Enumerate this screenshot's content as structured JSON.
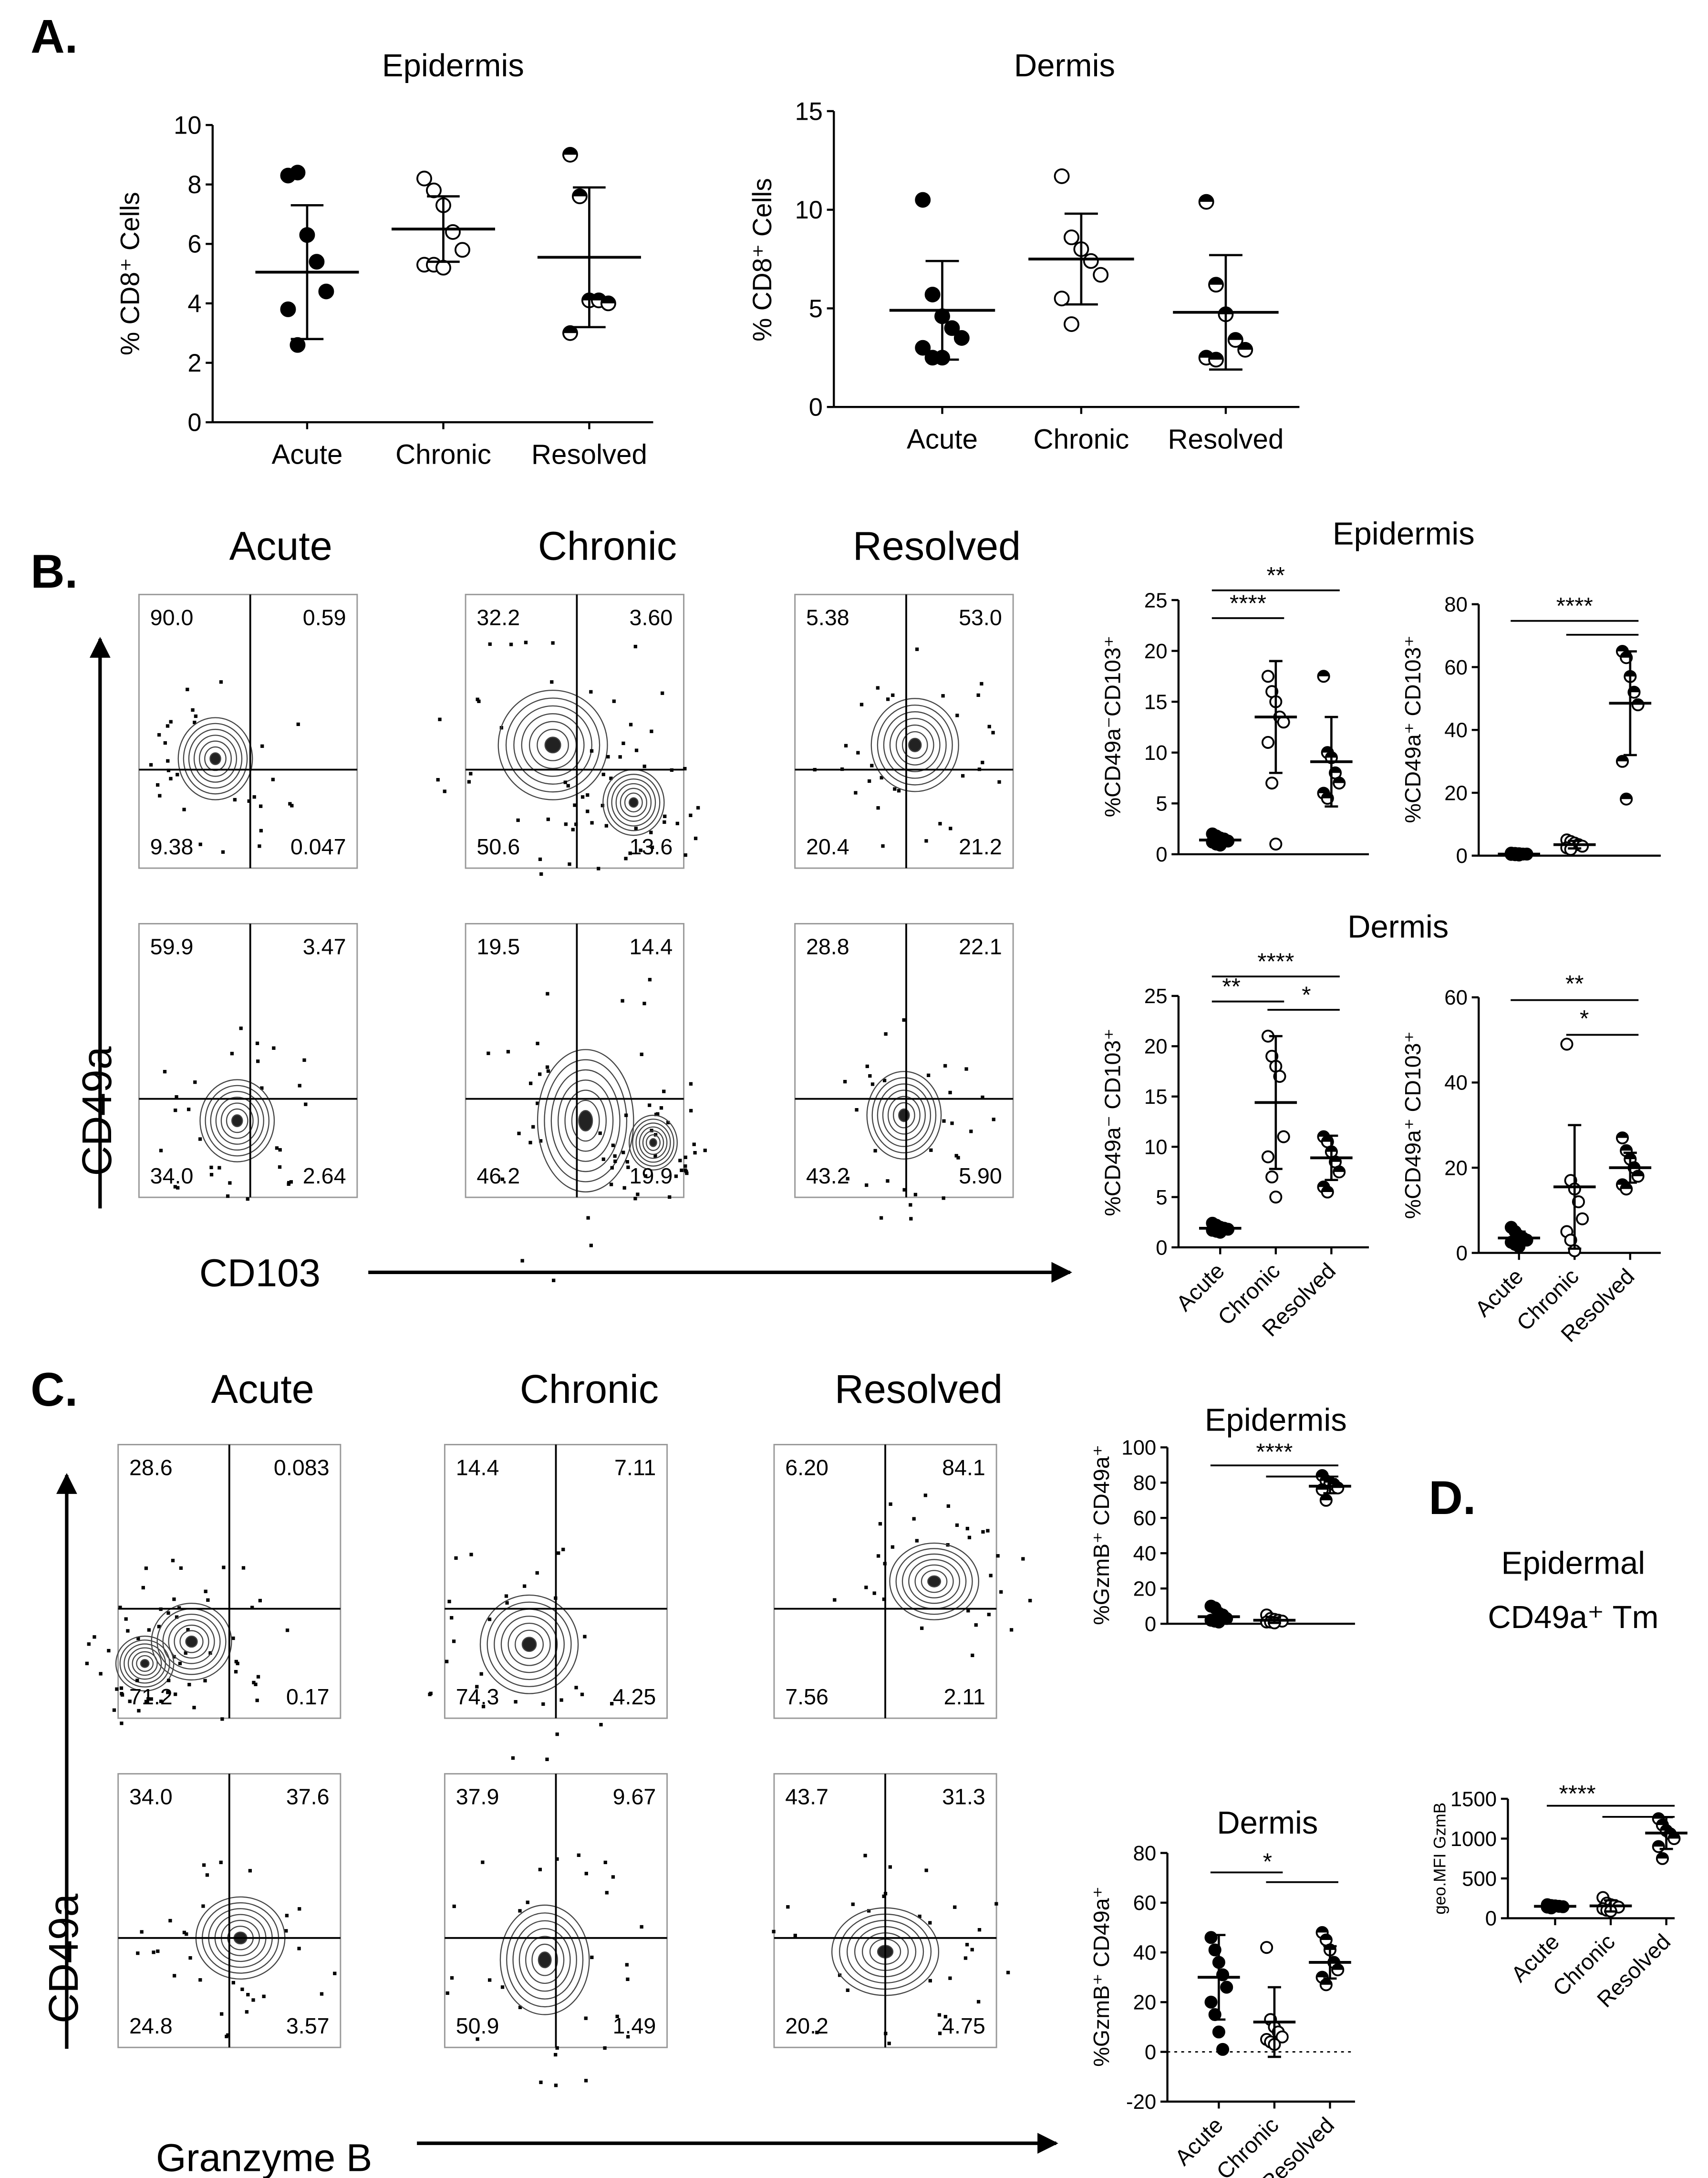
{
  "panel_labels": [
    "A.",
    "B.",
    "C.",
    "D."
  ],
  "flow": [
    {
      "groups": [
        "Acute",
        "Chronic",
        "Resolved"
      ],
      "axis_y": "CD49a",
      "axis_x": "CD103",
      "plots": [
        [
          [
            "90.0",
            "0.59",
            "9.38",
            "0.047"
          ],
          [
            "32.2",
            "3.60",
            "50.6",
            "13.6"
          ],
          [
            "5.38",
            "53.0",
            "20.4",
            "21.2"
          ]
        ],
        [
          [
            "59.9",
            "3.47",
            "34.0",
            "2.64"
          ],
          [
            "19.5",
            "14.4",
            "46.2",
            "19.9"
          ],
          [
            "28.8",
            "22.1",
            "43.2",
            "5.90"
          ]
        ]
      ]
    },
    {
      "groups": [
        "Acute",
        "Chronic",
        "Resolved"
      ],
      "axis_y": "CD49a",
      "axis_x": "Granzyme B",
      "plots": [
        [
          [
            "28.6",
            "0.083",
            "71.2",
            "0.17"
          ],
          [
            "14.4",
            "7.11",
            "74.3",
            "4.25"
          ],
          [
            "6.20",
            "84.1",
            "7.56",
            "2.11"
          ]
        ],
        [
          [
            "34.0",
            "37.6",
            "24.8",
            "3.57"
          ],
          [
            "37.9",
            "9.67",
            "50.9",
            "1.49"
          ],
          [
            "43.7",
            "31.3",
            "20.2",
            "4.75"
          ]
        ]
      ]
    }
  ],
  "chart_data": [
    {
      "type": "dot",
      "title": "Epidermis",
      "y_label": "% CD8⁺ Cells",
      "categories": [
        "Acute",
        "Chronic",
        "Resolved"
      ],
      "values": [
        [
          8.3,
          8.4,
          6.3,
          5.4,
          4.4,
          3.8,
          2.6
        ],
        [
          8.2,
          7.8,
          7.3,
          6.4,
          5.8,
          5.3,
          5.3,
          5.2
        ],
        [
          9.0,
          7.6,
          4.1,
          4.1,
          4.0,
          3.0
        ]
      ],
      "means": [
        5.05,
        6.5,
        5.55
      ],
      "sd": [
        2.25,
        1.1,
        2.35
      ],
      "markers": [
        "filled",
        "open",
        "half"
      ],
      "color": "#000000",
      "ylim": [
        0,
        10
      ],
      "yticks": [
        0,
        2,
        4,
        6,
        8,
        10
      ]
    },
    {
      "type": "dot",
      "title": "Dermis",
      "y_label": "% CD8⁺ Cells",
      "categories": [
        "Acute",
        "Chronic",
        "Resolved"
      ],
      "values": [
        [
          10.5,
          5.7,
          4.6,
          4.0,
          3.5,
          3.0,
          2.5,
          2.5
        ],
        [
          11.7,
          8.6,
          8.0,
          7.4,
          6.7,
          5.5,
          4.2
        ],
        [
          10.4,
          6.2,
          4.7,
          3.4,
          2.9,
          2.5,
          2.4
        ]
      ],
      "means": [
        4.9,
        7.5,
        4.8
      ],
      "sd": [
        2.5,
        2.3,
        2.9
      ],
      "markers": [
        "filled",
        "open",
        "half"
      ],
      "color": "#000000",
      "ylim": [
        0,
        15
      ],
      "yticks": [
        0,
        5,
        10,
        15
      ]
    },
    {
      "type": "dot",
      "title": "Epidermis",
      "y_label": "%CD49a⁻CD103⁺",
      "values": [
        [
          2.0,
          1.8,
          1.6,
          1.5,
          1.3,
          1.2,
          1.0,
          0.9
        ],
        [
          17.5,
          16,
          15,
          13.5,
          13,
          11,
          7,
          1
        ],
        [
          17.5,
          10,
          9.5,
          8,
          7,
          6,
          5.5
        ]
      ],
      "means": [
        1.4,
        13.5,
        9.1
      ],
      "sd": [
        0.4,
        5.5,
        4.4
      ],
      "markers": [
        "filled",
        "open",
        "half"
      ],
      "color": "#000000",
      "ylim": [
        0,
        25
      ],
      "yticks": [
        0,
        5,
        10,
        15,
        20,
        25
      ],
      "annotations": [
        "**",
        "****"
      ]
    },
    {
      "type": "dot",
      "y_label": "%CD49a⁺ CD103⁺",
      "values": [
        [
          0.8,
          0.7,
          0.6,
          0.5,
          0.5,
          0.4,
          0.3,
          0.2
        ],
        [
          5,
          4.5,
          4,
          3.5,
          3,
          2.5,
          2
        ],
        [
          65,
          63,
          57,
          52,
          48,
          30,
          18
        ]
      ],
      "means": [
        0.5,
        3.5,
        48.5
      ],
      "sd": [
        0.3,
        1.2,
        16.5
      ],
      "markers": [
        "filled",
        "open",
        "half"
      ],
      "color": "#000000",
      "ylim": [
        0,
        80
      ],
      "yticks": [
        0,
        20,
        40,
        60,
        80
      ],
      "annotations": [
        "****"
      ]
    },
    {
      "type": "dot",
      "title": "Dermis",
      "y_label": "%CD49a⁻ CD103⁺",
      "categories": [
        "Acute",
        "Chronic",
        "Resolved"
      ],
      "values": [
        [
          2.4,
          2.2,
          2.0,
          1.9,
          1.8,
          1.7,
          1.6,
          1.5
        ],
        [
          21,
          19,
          18,
          17,
          11,
          9,
          7,
          5
        ],
        [
          11,
          10.5,
          9.5,
          8.5,
          7.5,
          6,
          5.5
        ]
      ],
      "means": [
        1.9,
        14.4,
        8.9
      ],
      "sd": [
        0.3,
        6.6,
        2.2
      ],
      "markers": [
        "filled",
        "open",
        "half"
      ],
      "color": "#000000",
      "ylim": [
        0,
        25
      ],
      "yticks": [
        0,
        5,
        10,
        15,
        20,
        25
      ],
      "annotations": [
        "****",
        "**",
        "*"
      ]
    },
    {
      "type": "dot",
      "y_label": "%CD49a⁺ CD103⁺",
      "categories": [
        "Acute",
        "Chronic",
        "Resolved"
      ],
      "values": [
        [
          6,
          5,
          4,
          3.5,
          3,
          2.5,
          2,
          1.5
        ],
        [
          49,
          17,
          15,
          12,
          8,
          5,
          3,
          0.5
        ],
        [
          27,
          24,
          22,
          20,
          18,
          16,
          15
        ]
      ],
      "means": [
        3.5,
        15.5,
        20
      ],
      "sd": [
        1.5,
        14.5,
        3.5
      ],
      "markers": [
        "filled",
        "open",
        "half"
      ],
      "color": "#000000",
      "ylim": [
        0,
        60
      ],
      "yticks": [
        0,
        20,
        40,
        60
      ],
      "annotations": [
        "**",
        "*"
      ]
    },
    {
      "type": "dot",
      "title": "Epidermis",
      "y_label": "%GzmB⁺ CD49a⁺",
      "values": [
        [
          10,
          9,
          6,
          5,
          3,
          2,
          1.5,
          1
        ],
        [
          5,
          3,
          2.5,
          2,
          1.5,
          1,
          1,
          0.5
        ],
        [
          84,
          81,
          80,
          79,
          77,
          76,
          70
        ]
      ],
      "means": [
        4,
        2,
        78
      ],
      "sd": [
        3,
        1.5,
        4
      ],
      "markers": [
        "filled",
        "open",
        "half"
      ],
      "color": "#000000",
      "ylim": [
        0,
        100
      ],
      "yticks": [
        0,
        20,
        40,
        60,
        80,
        100
      ],
      "annotations": [
        "****"
      ]
    },
    {
      "type": "dot",
      "title": "Dermis",
      "y_label": "%GzmB⁺ CD49a⁺",
      "categories": [
        "Acute",
        "Chronic",
        "Resolved"
      ],
      "values": [
        [
          46,
          41,
          36,
          31,
          26,
          20,
          15,
          8,
          1
        ],
        [
          42,
          13,
          10,
          8,
          6,
          5,
          4,
          3
        ],
        [
          48,
          45,
          41,
          36,
          33,
          30,
          27
        ]
      ],
      "means": [
        30,
        12,
        36
      ],
      "sd": [
        17,
        14,
        6.5
      ],
      "markers": [
        "filled",
        "open",
        "half"
      ],
      "color": "#000000",
      "ylim": [
        -20,
        80
      ],
      "yticks": [
        -20,
        0,
        20,
        40,
        60,
        80
      ],
      "hline": 0,
      "annotations": [
        "*"
      ]
    },
    {
      "type": "dot",
      "title": "Epidermal",
      "subtitle": "CD49a⁺ Tm",
      "y_label": "geo.MFI GzmB",
      "categories": [
        "Acute",
        "Chronic",
        "Resolved"
      ],
      "values": [
        [
          170,
          160,
          155,
          150,
          145,
          140,
          130
        ],
        [
          260,
          190,
          170,
          160,
          140,
          120,
          100,
          90
        ],
        [
          1250,
          1170,
          1100,
          1060,
          1000,
          900,
          750
        ]
      ],
      "means": [
        150,
        155,
        1070
      ],
      "sd": [
        15,
        70,
        200
      ],
      "markers": [
        "filled",
        "open",
        "half"
      ],
      "color": "#000000",
      "ylim": [
        0,
        1500
      ],
      "yticks": [
        0,
        500,
        1000,
        1500
      ],
      "annotations": [
        "****"
      ]
    }
  ]
}
